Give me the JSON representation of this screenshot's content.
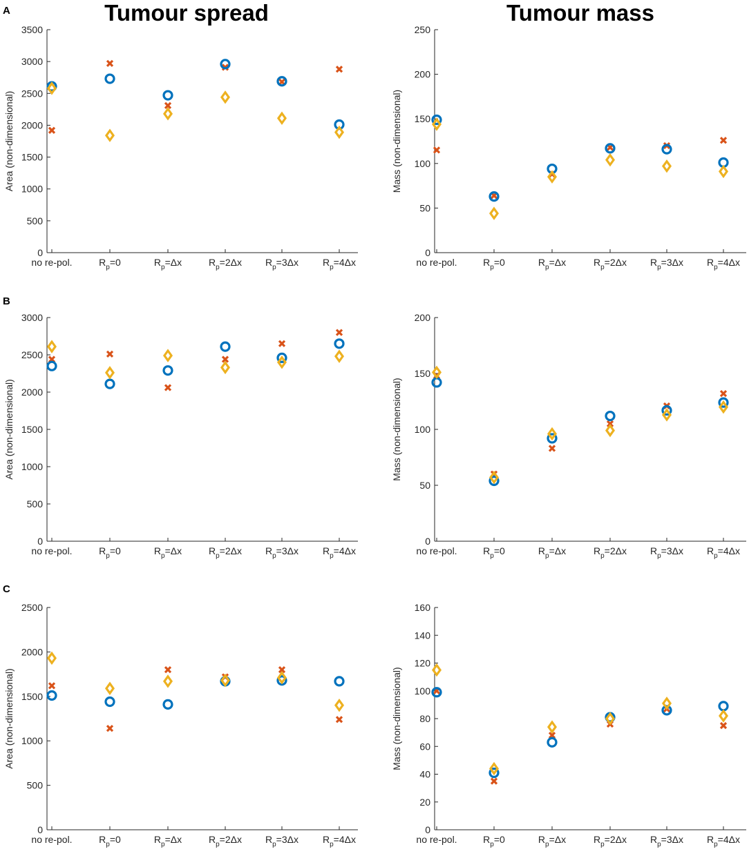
{
  "column_titles": [
    "Tumour spread",
    "Tumour mass"
  ],
  "panel_letters": [
    "A",
    "B",
    "C"
  ],
  "categories": [
    "no re-pol.",
    "R_p=0",
    "R_p=Δx",
    "R_p=2Δx",
    "R_p=3Δx",
    "R_p=4Δx"
  ],
  "colors": {
    "circle": "#0072BD",
    "cross": "#D95319",
    "diamond": "#EDB120",
    "axis": "#262626"
  },
  "chart_data": [
    {
      "type": "scatter",
      "panel": "A",
      "title": "Tumour spread",
      "ylabel": "Area (non-dimensional)",
      "ylim": [
        0,
        3500
      ],
      "yticks": [
        0,
        500,
        1000,
        1500,
        2000,
        2500,
        3000,
        3500
      ],
      "series": [
        {
          "name": "circle",
          "marker": "circle",
          "values": [
            2610,
            2730,
            2470,
            2960,
            2690,
            2010
          ]
        },
        {
          "name": "cross",
          "marker": "cross",
          "values": [
            1920,
            2970,
            2310,
            2910,
            2680,
            2880
          ]
        },
        {
          "name": "diamond",
          "marker": "diamond",
          "values": [
            2580,
            1840,
            2180,
            2440,
            2110,
            1890
          ]
        }
      ]
    },
    {
      "type": "scatter",
      "panel": "A",
      "title": "Tumour mass",
      "ylabel": "Mass (non-dimensional)",
      "ylim": [
        0,
        250
      ],
      "yticks": [
        0,
        50,
        100,
        150,
        200,
        250
      ],
      "series": [
        {
          "name": "circle",
          "marker": "circle",
          "values": [
            149,
            63,
            94,
            117,
            116,
            101
          ]
        },
        {
          "name": "cross",
          "marker": "cross",
          "values": [
            115,
            64,
            88,
            118,
            120,
            126
          ]
        },
        {
          "name": "diamond",
          "marker": "diamond",
          "values": [
            144,
            44,
            85,
            104,
            97,
            91
          ]
        }
      ]
    },
    {
      "type": "scatter",
      "panel": "B",
      "title": "Tumour spread",
      "ylabel": "Area (non-dimensional)",
      "ylim": [
        0,
        3000
      ],
      "yticks": [
        0,
        500,
        1000,
        1500,
        2000,
        2500,
        3000
      ],
      "series": [
        {
          "name": "circle",
          "marker": "circle",
          "values": [
            2350,
            2110,
            2290,
            2610,
            2460,
            2650
          ]
        },
        {
          "name": "cross",
          "marker": "cross",
          "values": [
            2440,
            2510,
            2060,
            2440,
            2650,
            2800
          ]
        },
        {
          "name": "diamond",
          "marker": "diamond",
          "values": [
            2610,
            2260,
            2490,
            2330,
            2400,
            2480
          ]
        }
      ]
    },
    {
      "type": "scatter",
      "panel": "B",
      "title": "Tumour mass",
      "ylabel": "Mass (non-dimensional)",
      "ylim": [
        0,
        200
      ],
      "yticks": [
        0,
        50,
        100,
        150,
        200
      ],
      "series": [
        {
          "name": "circle",
          "marker": "circle",
          "values": [
            142,
            54,
            92,
            112,
            117,
            124
          ]
        },
        {
          "name": "cross",
          "marker": "cross",
          "values": [
            148,
            60,
            83,
            105,
            121,
            132
          ]
        },
        {
          "name": "diamond",
          "marker": "diamond",
          "values": [
            151,
            57,
            96,
            99,
            113,
            120
          ]
        }
      ]
    },
    {
      "type": "scatter",
      "panel": "C",
      "title": "Tumour spread",
      "ylabel": "Area (non-dimensional)",
      "ylim": [
        0,
        2500
      ],
      "yticks": [
        0,
        500,
        1000,
        1500,
        2000,
        2500
      ],
      "series": [
        {
          "name": "circle",
          "marker": "circle",
          "values": [
            1510,
            1440,
            1410,
            1670,
            1680,
            1670
          ]
        },
        {
          "name": "cross",
          "marker": "cross",
          "values": [
            1620,
            1140,
            1800,
            1720,
            1800,
            1240
          ]
        },
        {
          "name": "diamond",
          "marker": "diamond",
          "values": [
            1930,
            1590,
            1670,
            1680,
            1710,
            1400
          ]
        }
      ]
    },
    {
      "type": "scatter",
      "panel": "C",
      "title": "Tumour mass",
      "ylabel": "Mass (non-dimensional)",
      "ylim": [
        0,
        160
      ],
      "yticks": [
        0,
        20,
        40,
        60,
        80,
        100,
        120,
        140,
        160
      ],
      "series": [
        {
          "name": "circle",
          "marker": "circle",
          "values": [
            99,
            41,
            63,
            81,
            86,
            89
          ]
        },
        {
          "name": "cross",
          "marker": "cross",
          "values": [
            100,
            35,
            68,
            76,
            87,
            75
          ]
        },
        {
          "name": "diamond",
          "marker": "diamond",
          "values": [
            115,
            44,
            74,
            80,
            91,
            82
          ]
        }
      ]
    }
  ]
}
